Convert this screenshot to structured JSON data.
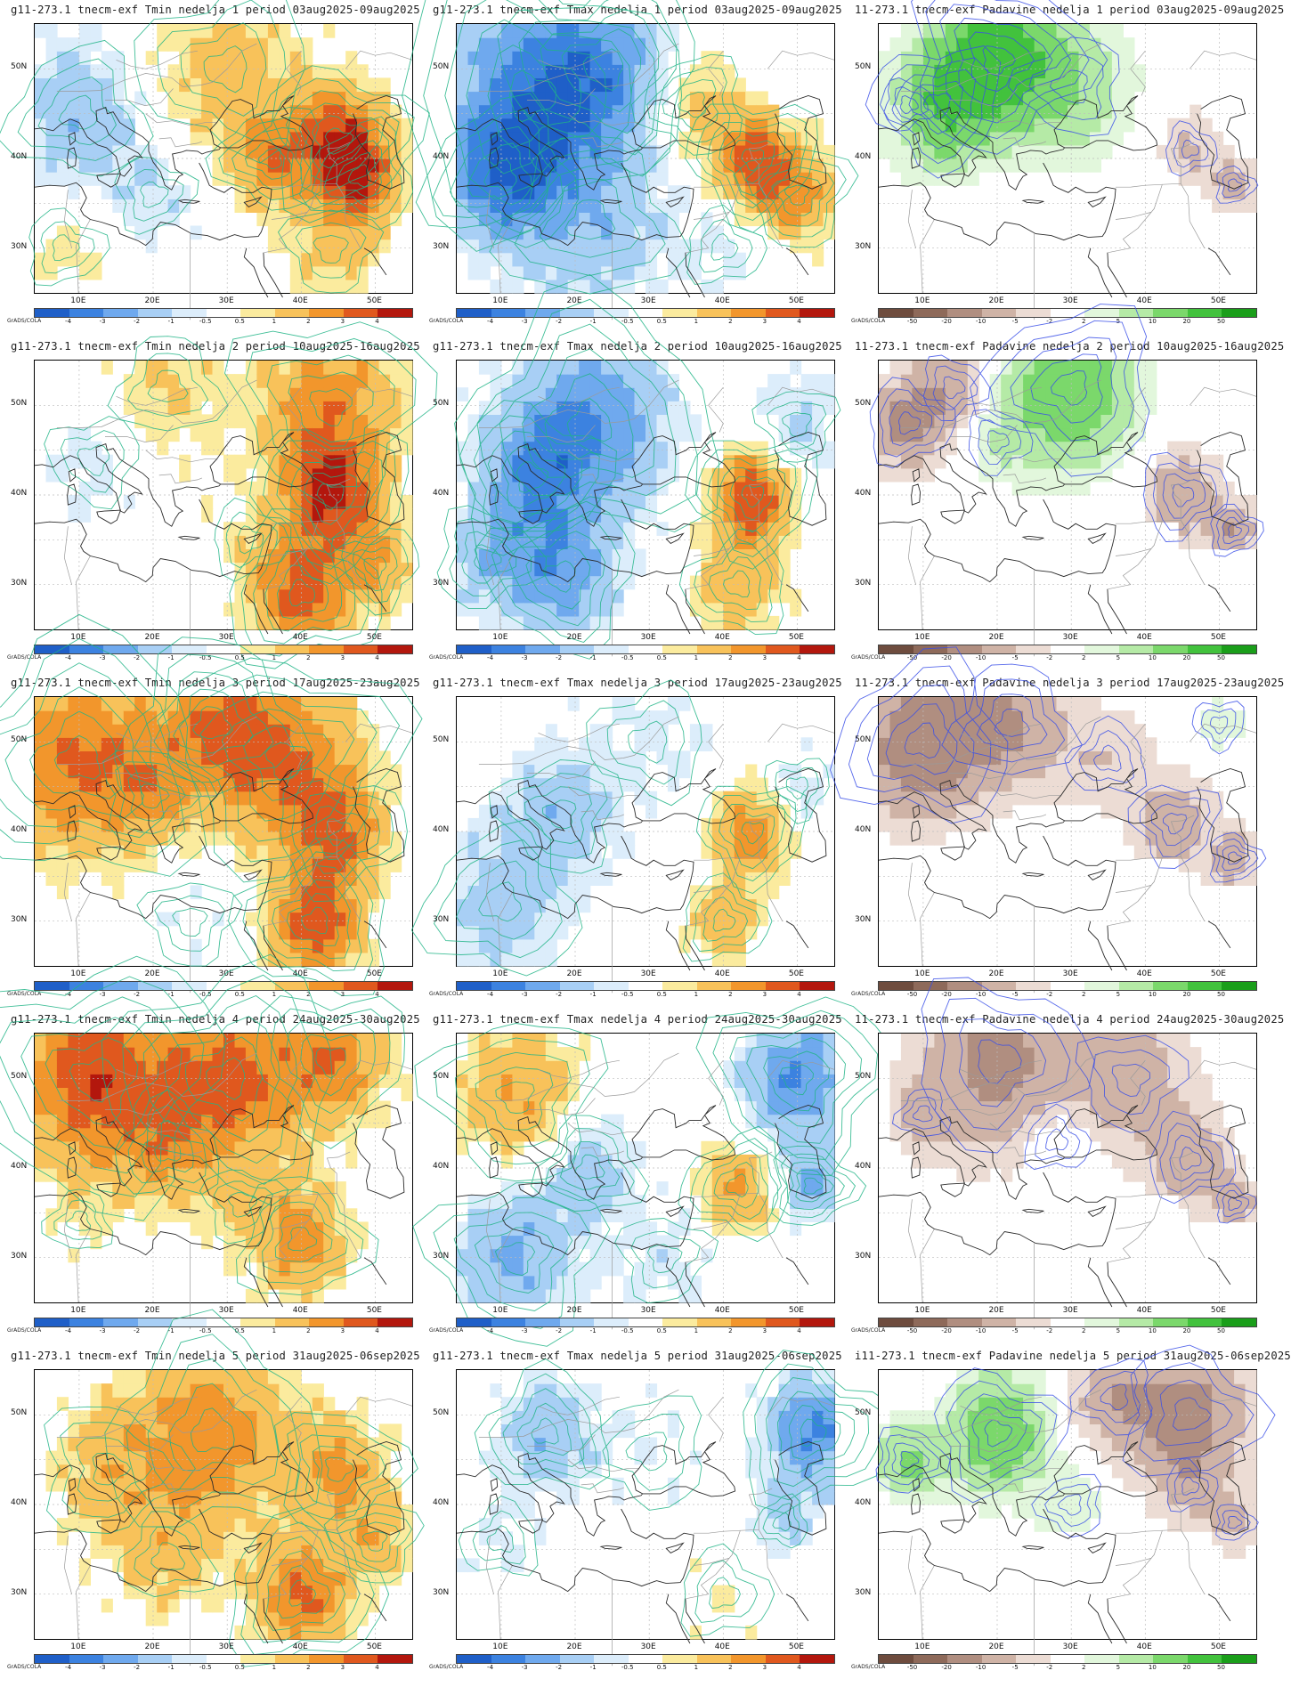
{
  "axis": {
    "lat_labels": [
      "50N",
      "40N",
      "30N"
    ],
    "lon_labels": [
      "10E",
      "20E",
      "30E",
      "40E",
      "50E"
    ],
    "grads_tag": "GrADS/COLA"
  },
  "colorbars": {
    "temperature": {
      "labels": [
        "-4",
        "-3",
        "-2",
        "-1",
        "-0.5",
        "0.5",
        "1",
        "2",
        "3",
        "4"
      ],
      "colors": [
        "#1f5fc8",
        "#3c82e0",
        "#6fa9ee",
        "#a8cff5",
        "#dcedfb",
        "#ffffff",
        "#fbeb9e",
        "#f8c25a",
        "#f2962c",
        "#e0581e",
        "#b3170d"
      ]
    },
    "precip": {
      "labels": [
        "-50",
        "-20",
        "-10",
        "-5",
        "-2",
        "2",
        "5",
        "10",
        "20",
        "50"
      ],
      "colors": [
        "#6e4c3e",
        "#8e6a5a",
        "#b08e80",
        "#cfb3a6",
        "#ecdcd4",
        "#ffffff",
        "#e2f7dc",
        "#b5eaa6",
        "#7bd86b",
        "#42c23d",
        "#1a9e1a"
      ]
    }
  },
  "colors": {
    "contour_temp": "#20b486",
    "contour_precip": "#3a4fe8",
    "coast": "#2b2b2b",
    "border": "#9a9a9a",
    "gridline": "#bdbdbd"
  },
  "panels": [
    {
      "title": "g11-273.1  tnecm-exf  Tmin  nedelja  1  period  03aug2025-09aug2025",
      "type": "temp",
      "pattern": "tmin1"
    },
    {
      "title": "g11-273.1  tnecm-exf  Tmax  nedelja  1  period  03aug2025-09aug2025",
      "type": "temp",
      "pattern": "tmax1"
    },
    {
      "title": "11-273.1  tnecm-exf  Padavine  nedelja  1  period  03aug2025-09aug2025",
      "type": "precip",
      "pattern": "pr1"
    },
    {
      "title": "g11-273.1  tnecm-exf  Tmin  nedelja  2  period  10aug2025-16aug2025",
      "type": "temp",
      "pattern": "tmin2"
    },
    {
      "title": "g11-273.1  tnecm-exf  Tmax  nedelja  2  period  10aug2025-16aug2025",
      "type": "temp",
      "pattern": "tmax2"
    },
    {
      "title": "11-273.1  tnecm-exf  Padavine  nedelja  2  period  10aug2025-16aug2025",
      "type": "precip",
      "pattern": "pr2"
    },
    {
      "title": "g11-273.1  tnecm-exf  Tmin  nedelja  3  period  17aug2025-23aug2025",
      "type": "temp",
      "pattern": "tmin3"
    },
    {
      "title": "g11-273.1  tnecm-exf  Tmax  nedelja  3  period  17aug2025-23aug2025",
      "type": "temp",
      "pattern": "tmax3"
    },
    {
      "title": "11-273.1  tnecm-exf  Padavine  nedelja  3  period  17aug2025-23aug2025",
      "type": "precip",
      "pattern": "pr3"
    },
    {
      "title": "g11-273.1  tnecm-exf  Tmin  nedelja  4  period  24aug2025-30aug2025",
      "type": "temp",
      "pattern": "tmin4"
    },
    {
      "title": "g11-273.1  tnecm-exf  Tmax  nedelja  4  period  24aug2025-30aug2025",
      "type": "temp",
      "pattern": "tmax4"
    },
    {
      "title": "11-273.1  tnecm-exf  Padavine  nedelja  4  period  24aug2025-30aug2025",
      "type": "precip",
      "pattern": "pr4"
    },
    {
      "title": "g11-273.1  tnecm-exf  Tmin  nedelja  5  period  31aug2025-06sep2025",
      "type": "temp",
      "pattern": "tmin5"
    },
    {
      "title": "g11-273.1  tnecm-exf  Tmax  nedelja  5  period  31aug2025-06sep2025",
      "type": "temp",
      "pattern": "tmax5"
    },
    {
      "title": "i11-273.1  tnecm-exf  Padavine  nedelja  5  period  31aug2025-06sep2025",
      "type": "precip",
      "pattern": "pr5"
    }
  ]
}
